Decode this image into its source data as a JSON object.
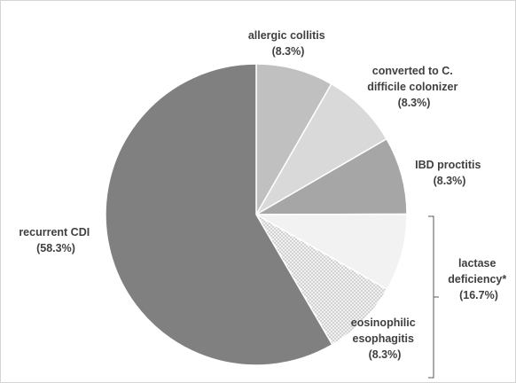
{
  "chart_data": {
    "type": "pie",
    "title": "",
    "slices": [
      {
        "label_lines": [
          "allergic collitis",
          "(8.3%)"
        ],
        "value": 8.3,
        "color": "#c0c0c0",
        "pattern": false
      },
      {
        "label_lines": [
          "converted to C.",
          "difficile colonizer",
          "(8.3%)"
        ],
        "value": 8.3,
        "color": "#d9d9d9",
        "pattern": false
      },
      {
        "label_lines": [
          "IBD proctitis",
          "(8.3%)"
        ],
        "value": 8.3,
        "color": "#a6a6a6",
        "pattern": false
      },
      {
        "label_lines": [],
        "value": 8.3,
        "color": "#f2f2f2",
        "pattern": false
      },
      {
        "label_lines": [
          "eosinophilic",
          "esophagitis",
          "(8.3%)"
        ],
        "value": 8.3,
        "color": "#f2f2f2",
        "pattern": true
      },
      {
        "label_lines": [
          "recurrent CDI",
          "(58.3%)"
        ],
        "value": 58.3,
        "color": "#808080",
        "pattern": false
      }
    ],
    "group_annotation": {
      "label_lines": [
        "lactase",
        "deficiency*",
        "(16.7%)"
      ],
      "value": 16.7
    },
    "slice_border_color": "#ffffff",
    "legend": "none"
  }
}
